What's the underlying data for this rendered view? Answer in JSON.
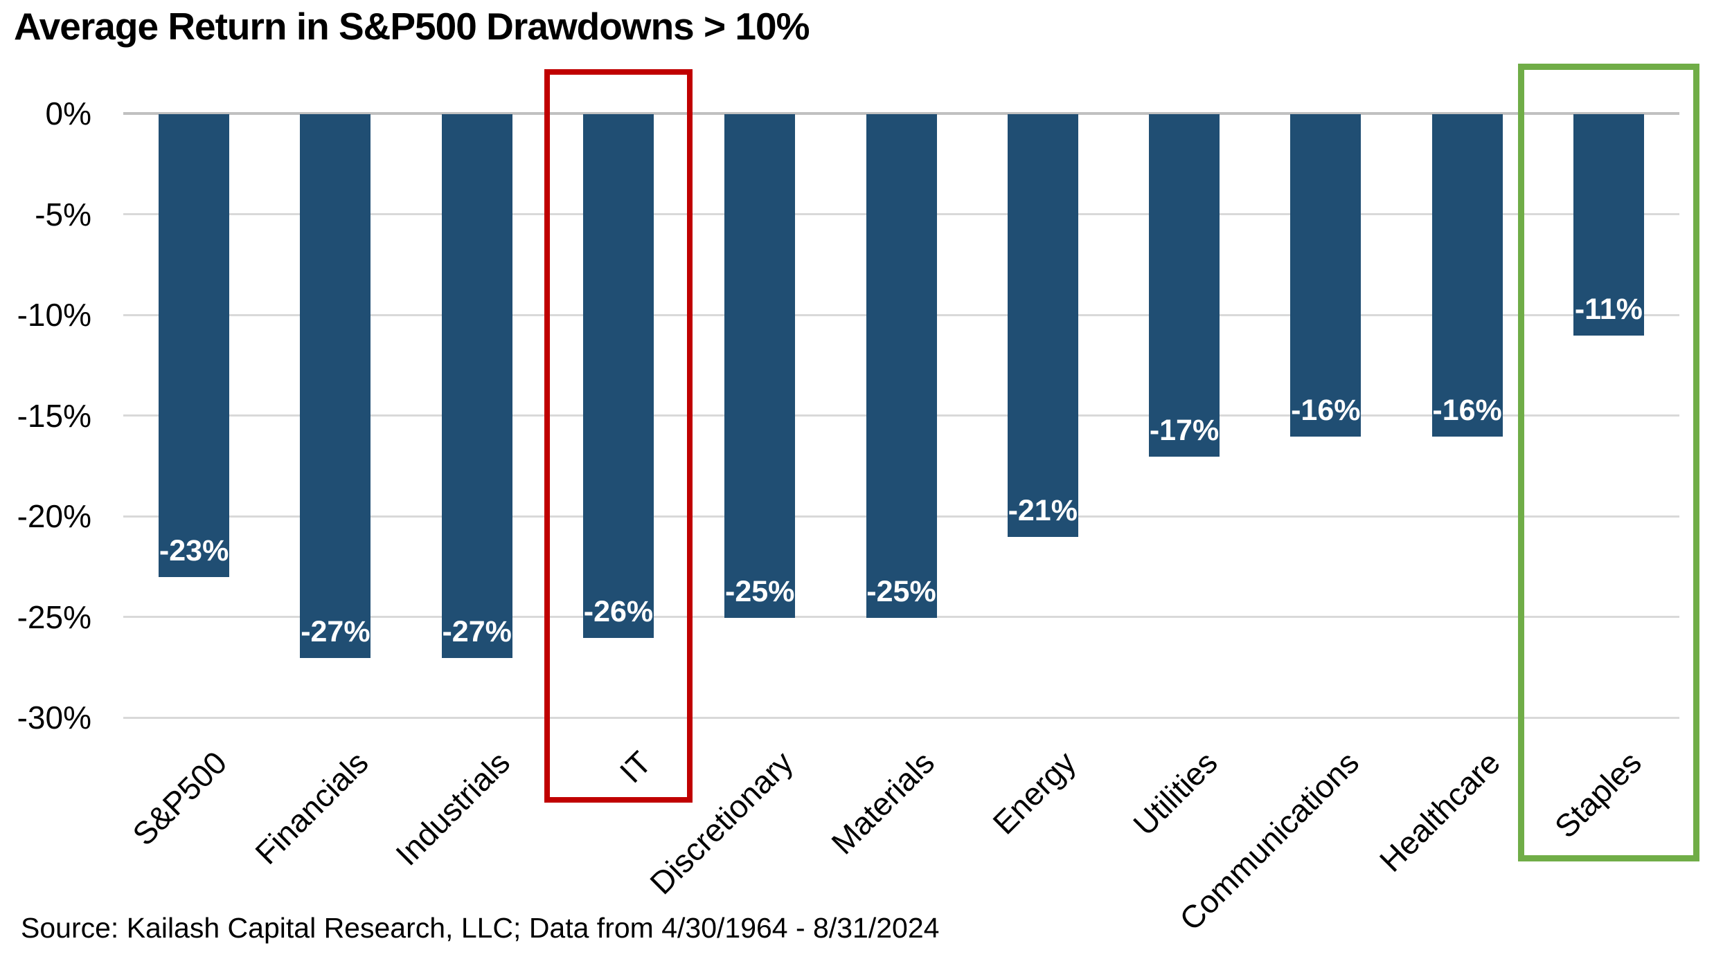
{
  "header": {
    "title": "Average Return in S&P500 Drawdowns > 10%"
  },
  "footer": {
    "source": "Source: Kailash Capital Research, LLC; Data from 4/30/1964 - 8/31/2024"
  },
  "chart_data": {
    "type": "bar",
    "title": "Average Return in S&P500 Drawdowns > 10%",
    "categories": [
      "S&P500",
      "Financials",
      "Industrials",
      "IT",
      "Discretionary",
      "Materials",
      "Energy",
      "Utilities",
      "Communications",
      "Healthcare",
      "Staples"
    ],
    "values": [
      -23,
      -27,
      -27,
      -26,
      -25,
      -25,
      -21,
      -17,
      -16,
      -16,
      -11
    ],
    "bar_labels": [
      "-23%",
      "-27%",
      "-27%",
      "-26%",
      "-25%",
      "-25%",
      "-21%",
      "-17%",
      "-16%",
      "-16%",
      "-11%"
    ],
    "xlabel": "",
    "ylabel": "",
    "ylim": [
      -30,
      0
    ],
    "yticks": [
      0,
      -5,
      -10,
      -15,
      -20,
      -25,
      -30
    ],
    "ytick_labels": [
      "0%",
      "-5%",
      "-10%",
      "-15%",
      "-20%",
      "-25%",
      "-30%"
    ],
    "grid": true,
    "legend": "none",
    "bar_color": "#204E73",
    "bar_label_color": "#FFFFFF",
    "gridline_color": "#D9D9D9",
    "zeroline_color": "#C0C0C0",
    "highlights": [
      {
        "category": "IT",
        "color": "#C00000"
      },
      {
        "category": "Staples",
        "color": "#70AD47"
      }
    ]
  }
}
